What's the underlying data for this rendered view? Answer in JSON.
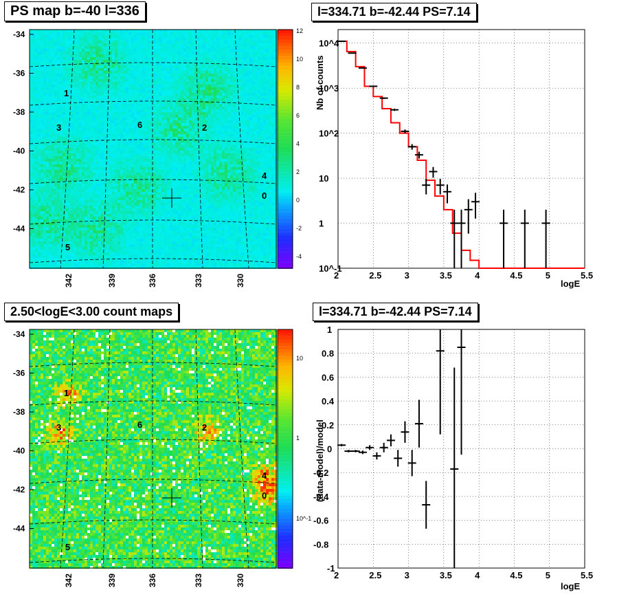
{
  "panels": {
    "top_left_title": "PS map b=-40 l=336",
    "top_right_title": "l=334.71 b=-42.44 PS=7.14",
    "bottom_left_title": "2.50<logE<3.00 count maps",
    "bottom_right_title": "l=334.71 b=-42.44 PS=7.14"
  },
  "colors": {
    "red_model": "#ff0000",
    "data_black": "#000000"
  },
  "chart_data": [
    {
      "type": "heatmap",
      "title": "PS map b=-40 l=336",
      "x_ticks": [
        "342",
        "339",
        "336",
        "333",
        "330"
      ],
      "y_ticks": [
        "-34",
        "-36",
        "-38",
        "-40",
        "-42",
        "-44"
      ],
      "colorbar_ticks": [
        "12",
        "10",
        "8",
        "6",
        "4",
        "2",
        "0",
        "-2",
        "-4"
      ],
      "zlim": [
        -5,
        12
      ],
      "labels": [
        "1",
        "3",
        "6",
        "2",
        "4",
        "0",
        "5"
      ],
      "cross_marker": {
        "l": 334.71,
        "b": -42.44
      }
    },
    {
      "type": "line",
      "title": "l=334.71 b=-42.44 PS=7.14",
      "xlabel": "logE",
      "ylabel": "Nb of counts",
      "log_y": true,
      "xlim": [
        2,
        5.5
      ],
      "ylim": [
        0.1,
        20000
      ],
      "x_ticks": [
        "2",
        "2.5",
        "3",
        "3.5",
        "4",
        "4.5",
        "5",
        "5.5"
      ],
      "y_ticks": [
        "10^4",
        "10^3",
        "10^2",
        "10",
        "1",
        "10^-1"
      ],
      "model_bins": [
        2.0,
        2.125,
        2.25,
        2.375,
        2.5,
        2.625,
        2.75,
        2.875,
        3.0,
        3.125,
        3.25,
        3.375,
        3.5,
        3.625,
        3.75,
        3.875,
        4.0,
        5.5
      ],
      "model_values": [
        11000,
        6500,
        3000,
        1100,
        650,
        350,
        170,
        100,
        50,
        25,
        9,
        4,
        2,
        0.6,
        0.25,
        0.15,
        0.1
      ],
      "data_x": [
        2.05,
        2.2,
        2.35,
        2.5,
        2.65,
        2.8,
        2.95,
        3.05,
        3.15,
        3.25,
        3.35,
        3.45,
        3.55,
        3.65,
        3.75,
        3.85,
        3.95,
        4.35,
        4.65,
        4.95
      ],
      "data_y": [
        11000,
        6000,
        2800,
        1100,
        600,
        330,
        110,
        50,
        33,
        7,
        14,
        7,
        5,
        1,
        1,
        2,
        3,
        1,
        1,
        1
      ]
    },
    {
      "type": "heatmap",
      "title": "2.50<logE<3.00 count maps",
      "x_ticks": [
        "342",
        "339",
        "336",
        "333",
        "330"
      ],
      "y_ticks": [
        "-34",
        "-36",
        "-38",
        "-40",
        "-42",
        "-44"
      ],
      "colorbar_ticks": [
        "10",
        "1",
        "10^-1"
      ],
      "log_z": true,
      "labels": [
        "1",
        "3",
        "6",
        "2",
        "4",
        "0",
        "5"
      ],
      "cross_marker": {
        "l": 334.71,
        "b": -42.44
      }
    },
    {
      "type": "scatter",
      "title": "l=334.71 b=-42.44 PS=7.14",
      "xlabel": "logE",
      "ylabel": "(data-model)/model",
      "xlim": [
        2,
        5.5
      ],
      "ylim": [
        -1,
        1
      ],
      "x_ticks": [
        "2",
        "2.5",
        "3",
        "3.5",
        "4",
        "4.5",
        "5",
        "5.5"
      ],
      "y_ticks": [
        "1",
        "0.8",
        "0.6",
        "0.4",
        "0.2",
        "0",
        "-0.2",
        "-0.4",
        "-0.6",
        "-0.8",
        "-1"
      ],
      "x": [
        2.05,
        2.15,
        2.25,
        2.35,
        2.45,
        2.55,
        2.65,
        2.75,
        2.85,
        2.95,
        3.05,
        3.15,
        3.25,
        3.45,
        3.65,
        3.75
      ],
      "y": [
        0.03,
        -0.02,
        -0.02,
        -0.03,
        0.01,
        -0.06,
        0.01,
        0.07,
        -0.08,
        0.14,
        -0.12,
        0.21,
        -0.47,
        0.82,
        -0.17,
        0.85
      ],
      "err": [
        0.01,
        0.01,
        0.01,
        0.015,
        0.02,
        0.03,
        0.04,
        0.05,
        0.07,
        0.09,
        0.11,
        0.2,
        0.2,
        0.7,
        0.85,
        0.9
      ]
    }
  ]
}
